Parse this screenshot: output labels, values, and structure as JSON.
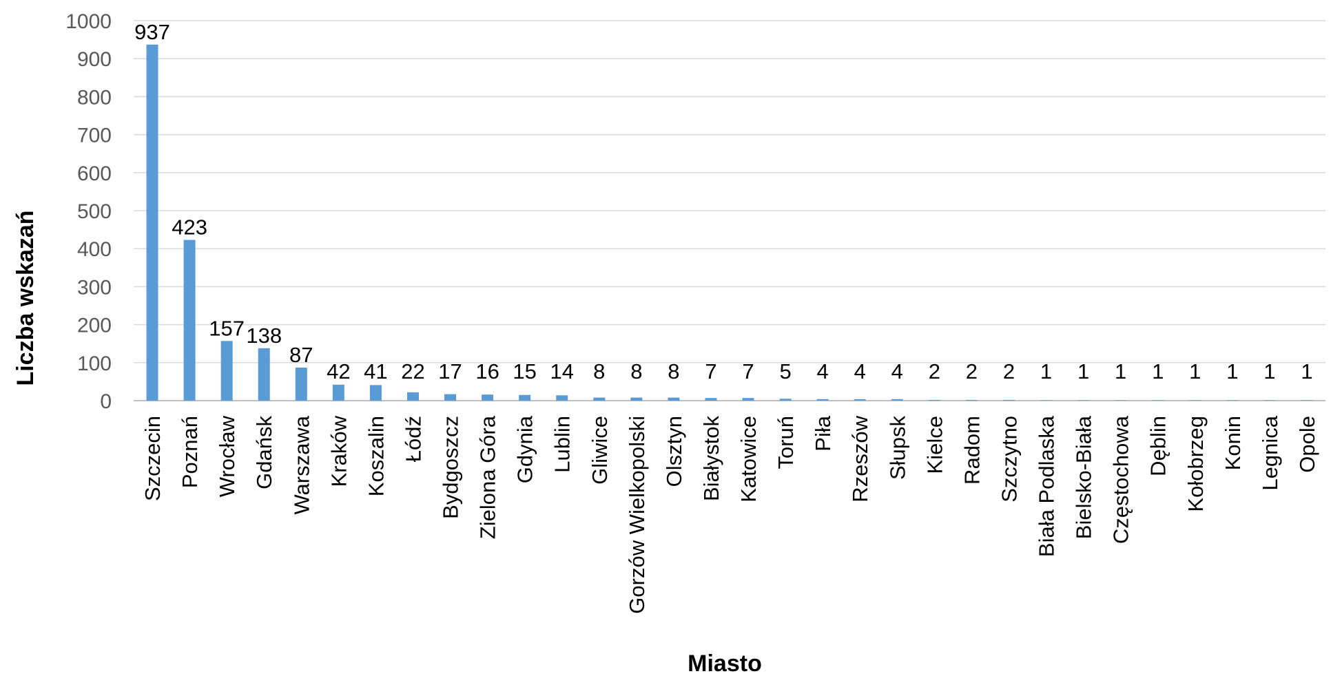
{
  "chart_data": {
    "type": "bar",
    "categories": [
      "Szczecin",
      "Poznań",
      "Wrocław",
      "Gdańsk",
      "Warszawa",
      "Kraków",
      "Koszalin",
      "Łódź",
      "Bydgoszcz",
      "Zielona Góra",
      "Gdynia",
      "Lublin",
      "Gliwice",
      "Gorzów Wielkopolski",
      "Olsztyn",
      "Białystok",
      "Katowice",
      "Toruń",
      "Piła",
      "Rzeszów",
      "Słupsk",
      "Kielce",
      "Radom",
      "Szczytno",
      "Biała Podlaska",
      "Bielsko-Biała",
      "Częstochowa",
      "Dęblin",
      "Kołobrzeg",
      "Konin",
      "Legnica",
      "Opole"
    ],
    "values": [
      937,
      423,
      157,
      138,
      87,
      42,
      41,
      22,
      17,
      16,
      15,
      14,
      8,
      8,
      8,
      7,
      7,
      5,
      4,
      4,
      4,
      2,
      2,
      2,
      1,
      1,
      1,
      1,
      1,
      1,
      1,
      1
    ],
    "value_labels": [
      "937",
      "423",
      "157",
      "138",
      "87",
      "42",
      "41",
      "22",
      "17",
      "16",
      "15",
      "14",
      "8",
      "8",
      "8",
      "7",
      "7",
      "5",
      "4",
      "4",
      "4",
      "2",
      "2",
      "2",
      "1",
      "1",
      "1",
      "1",
      "1",
      "1",
      "1",
      "1"
    ],
    "xlabel": "Miasto",
    "ylabel": "Liczba wskazań",
    "ylim": [
      0,
      1000
    ],
    "yticks": [
      "0",
      "100",
      "200",
      "300",
      "400",
      "500",
      "600",
      "700",
      "800",
      "900",
      "1000"
    ],
    "grid": true,
    "legend": "none",
    "bar_color": "#5b9bd5"
  }
}
